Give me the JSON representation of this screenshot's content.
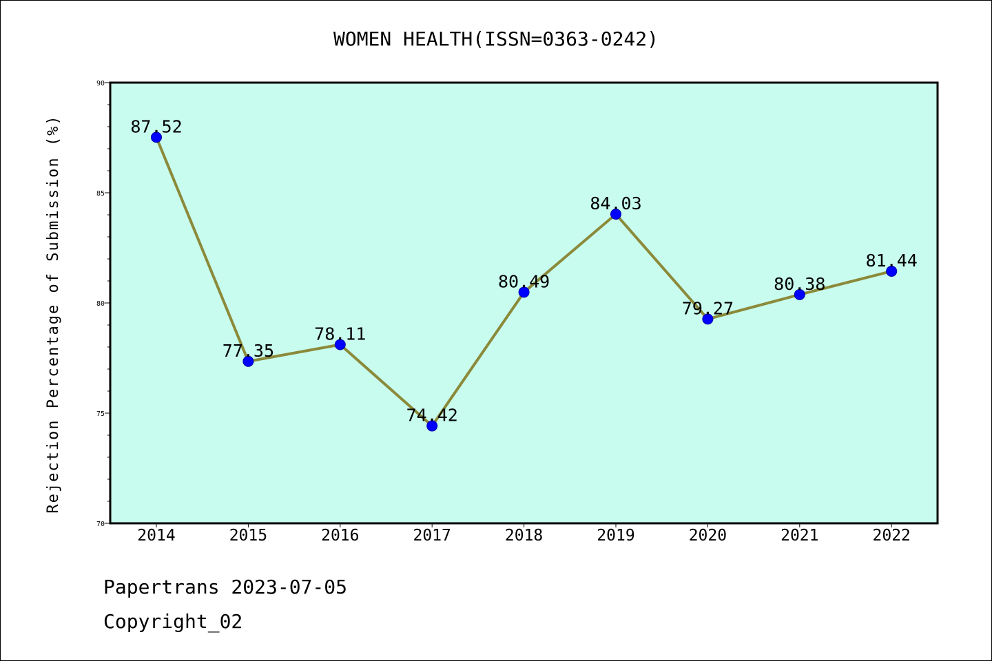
{
  "chart_data": {
    "type": "line",
    "title": "WOMEN HEALTH(ISSN=0363-0242)",
    "xlabel": "",
    "ylabel": "Rejection Percentage of Submission (%)",
    "categories": [
      "2014",
      "2015",
      "2016",
      "2017",
      "2018",
      "2019",
      "2020",
      "2021",
      "2022"
    ],
    "series": [
      {
        "values": [
          87.52,
          77.35,
          78.11,
          74.42,
          80.49,
          84.03,
          79.27,
          80.38,
          81.44
        ],
        "data_labels": [
          "87.52",
          "77.35",
          "78.11",
          "74.42",
          "80.49",
          "84.03",
          "79.27",
          "80.38",
          "81.44"
        ]
      }
    ],
    "yticks": [
      "70",
      "75",
      "80",
      "85",
      "90"
    ],
    "ylim": [
      70,
      90
    ],
    "grid": false,
    "colors": {
      "plot_background": "#c8fcee",
      "line": "#8b8a3a",
      "marker": "#0000ff"
    }
  },
  "footer": {
    "line1": "Papertrans 2023-07-05",
    "line2": "Copyright_02"
  }
}
